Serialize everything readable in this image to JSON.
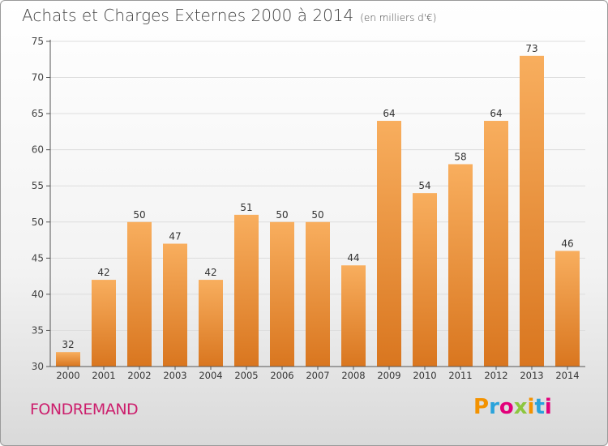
{
  "title": "Achats et Charges Externes 2000 à 2014",
  "unit": "(en milliers d'€)",
  "location": "FONDREMAND",
  "brand": {
    "letters": [
      "P",
      "r",
      "o",
      "x",
      "i",
      "t",
      "i"
    ],
    "colors": [
      "#f39200",
      "#2aa3db",
      "#e2007a",
      "#8dc63f",
      "#f39200",
      "#2aa3db",
      "#e2007a"
    ]
  },
  "colors": {
    "bar_light": "#f8ae5e",
    "bar_dark": "#d9761f",
    "grid": "#dddddd",
    "axis": "#555555"
  },
  "chart_data": {
    "type": "bar",
    "categories": [
      "2000",
      "2001",
      "2002",
      "2003",
      "2004",
      "2005",
      "2006",
      "2007",
      "2008",
      "2009",
      "2010",
      "2011",
      "2012",
      "2013",
      "2014"
    ],
    "values": [
      32,
      42,
      50,
      47,
      42,
      51,
      50,
      50,
      44,
      64,
      54,
      58,
      64,
      73,
      46
    ],
    "yticks": [
      30,
      35,
      40,
      45,
      50,
      55,
      60,
      65,
      70,
      75
    ],
    "ylim": [
      30,
      75
    ],
    "grid": true
  }
}
